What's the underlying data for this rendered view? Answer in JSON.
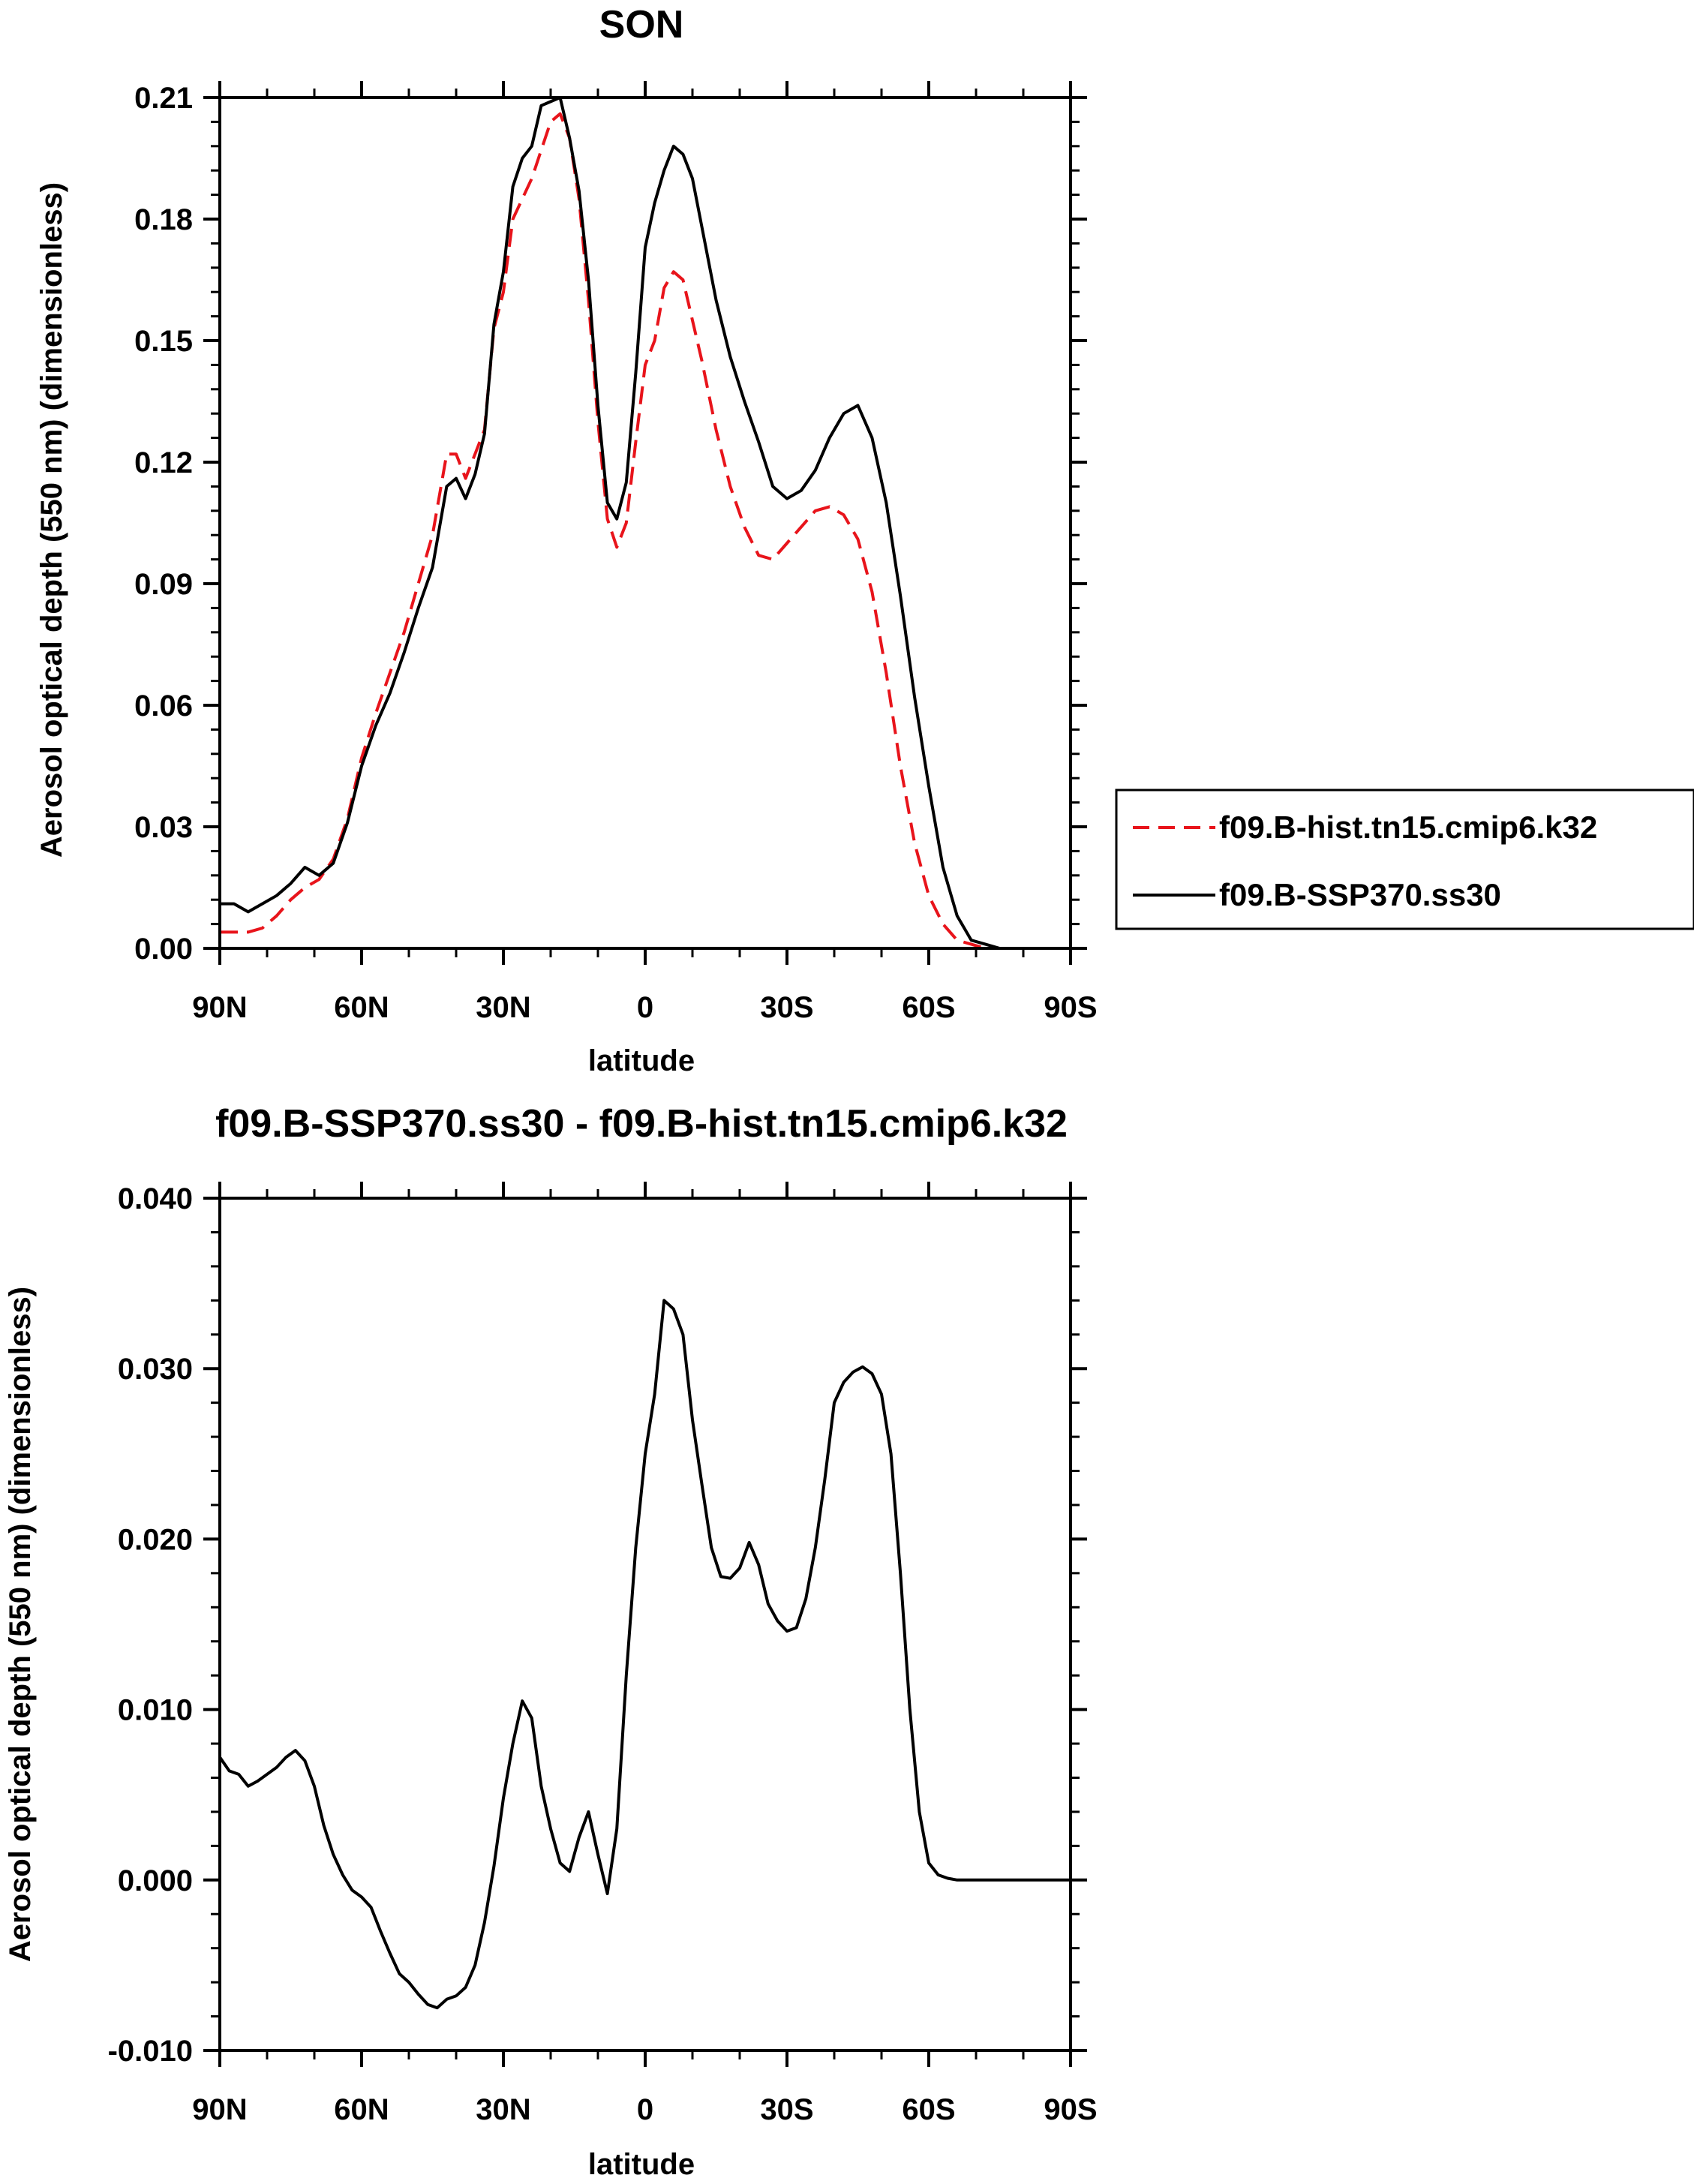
{
  "chart_data": [
    {
      "type": "line",
      "title": "SON",
      "xlabel": "latitude",
      "ylabel": "Aerosol optical depth (550 nm) (dimensionless)",
      "xlim": [
        90,
        -90
      ],
      "ylim": [
        0,
        0.21
      ],
      "x_ticks": [
        90,
        60,
        30,
        0,
        -30,
        -60,
        -90
      ],
      "x_tick_labels": [
        "90N",
        "60N",
        "30N",
        "0",
        "30S",
        "60S",
        "90S"
      ],
      "y_ticks": [
        0,
        0.03,
        0.06,
        0.09,
        0.12,
        0.15,
        0.18,
        0.21
      ],
      "y_tick_labels": [
        "0.00",
        "0.03",
        "0.06",
        "0.09",
        "0.12",
        "0.15",
        "0.18",
        "0.21"
      ],
      "grid": false,
      "legend": "right",
      "series": [
        {
          "name": "f09.B-hist.tn15.cmip6.k32",
          "color": "#e8141b",
          "dash": "dashed",
          "x": [
            90,
            87,
            84,
            81,
            78,
            75,
            72,
            69,
            66,
            63,
            60,
            57,
            54,
            51,
            48,
            45,
            42,
            40,
            38,
            36,
            34,
            32,
            30,
            28,
            26,
            24,
            22,
            20,
            18,
            16,
            14,
            12,
            10,
            8,
            6,
            4,
            2,
            0,
            -2,
            -4,
            -6,
            -8,
            -10,
            -12,
            -15,
            -18,
            -21,
            -24,
            -27,
            -30,
            -33,
            -36,
            -39,
            -42,
            -45,
            -48,
            -51,
            -54,
            -57,
            -60,
            -63,
            -66,
            -69,
            -72,
            -75,
            -80,
            -85,
            -90
          ],
          "y": [
            0.004,
            0.004,
            0.004,
            0.005,
            0.008,
            0.012,
            0.015,
            0.017,
            0.022,
            0.032,
            0.047,
            0.058,
            0.068,
            0.078,
            0.09,
            0.102,
            0.122,
            0.122,
            0.116,
            0.122,
            0.128,
            0.153,
            0.162,
            0.18,
            0.185,
            0.19,
            0.197,
            0.204,
            0.206,
            0.2,
            0.185,
            0.16,
            0.13,
            0.106,
            0.099,
            0.105,
            0.125,
            0.144,
            0.15,
            0.163,
            0.167,
            0.165,
            0.155,
            0.145,
            0.128,
            0.114,
            0.104,
            0.097,
            0.096,
            0.1,
            0.104,
            0.108,
            0.109,
            0.107,
            0.101,
            0.088,
            0.068,
            0.045,
            0.026,
            0.013,
            0.006,
            0.002,
            0.001,
            0.0,
            0.0,
            0.0,
            0.0,
            0.0
          ]
        },
        {
          "name": "f09.B-SSP370.ss30",
          "color": "#000000",
          "dash": "solid",
          "x": [
            90,
            87,
            84,
            81,
            78,
            75,
            72,
            69,
            66,
            63,
            60,
            57,
            54,
            51,
            48,
            45,
            42,
            40,
            38,
            36,
            34,
            32,
            30,
            28,
            26,
            24,
            22,
            20,
            18,
            16,
            14,
            12,
            10,
            8,
            6,
            4,
            2,
            0,
            -2,
            -4,
            -6,
            -8,
            -10,
            -12,
            -15,
            -18,
            -21,
            -24,
            -27,
            -30,
            -33,
            -36,
            -39,
            -42,
            -45,
            -48,
            -51,
            -54,
            -57,
            -60,
            -63,
            -66,
            -69,
            -72,
            -75,
            -80,
            -85,
            -90
          ],
          "y": [
            0.011,
            0.011,
            0.009,
            0.011,
            0.013,
            0.016,
            0.02,
            0.018,
            0.021,
            0.031,
            0.045,
            0.055,
            0.063,
            0.073,
            0.084,
            0.094,
            0.114,
            0.116,
            0.111,
            0.117,
            0.127,
            0.154,
            0.167,
            0.188,
            0.195,
            0.198,
            0.208,
            0.209,
            0.21,
            0.2,
            0.187,
            0.165,
            0.134,
            0.11,
            0.106,
            0.115,
            0.142,
            0.173,
            0.184,
            0.192,
            0.198,
            0.196,
            0.19,
            0.178,
            0.16,
            0.146,
            0.135,
            0.125,
            0.114,
            0.111,
            0.113,
            0.118,
            0.126,
            0.132,
            0.134,
            0.126,
            0.11,
            0.087,
            0.062,
            0.04,
            0.02,
            0.008,
            0.002,
            0.001,
            0.0,
            0.0,
            0.0,
            0.0
          ]
        }
      ]
    },
    {
      "type": "line",
      "title": "f09.B-SSP370.ss30 - f09.B-hist.tn15.cmip6.k32",
      "xlabel": "latitude",
      "ylabel": "Aerosol optical depth (550 nm) (dimensionless)",
      "xlim": [
        90,
        -90
      ],
      "ylim": [
        -0.01,
        0.04
      ],
      "x_ticks": [
        90,
        60,
        30,
        0,
        -30,
        -60,
        -90
      ],
      "x_tick_labels": [
        "90N",
        "60N",
        "30N",
        "0",
        "30S",
        "60S",
        "90S"
      ],
      "y_ticks": [
        -0.01,
        0.0,
        0.01,
        0.02,
        0.03,
        0.04
      ],
      "y_tick_labels": [
        "-0.010",
        "0.000",
        "0.010",
        "0.020",
        "0.030",
        "0.040"
      ],
      "grid": false,
      "series": [
        {
          "color": "#000000",
          "dash": "solid",
          "x": [
            90,
            88,
            86,
            84,
            82,
            80,
            78,
            76,
            74,
            72,
            70,
            68,
            66,
            64,
            62,
            60,
            58,
            56,
            54,
            52,
            50,
            48,
            46,
            44,
            42,
            40,
            38,
            36,
            34,
            32,
            30,
            28,
            26,
            24,
            22,
            20,
            18,
            16,
            14,
            12,
            10,
            8,
            6,
            4,
            2,
            0,
            -2,
            -4,
            -6,
            -8,
            -10,
            -12,
            -14,
            -16,
            -18,
            -20,
            -22,
            -24,
            -26,
            -28,
            -30,
            -32,
            -34,
            -36,
            -38,
            -40,
            -42,
            -44,
            -46,
            -48,
            -50,
            -52,
            -54,
            -56,
            -58,
            -60,
            -62,
            -64,
            -66,
            -68,
            -70,
            -72,
            -75,
            -80,
            -85,
            -90
          ],
          "y": [
            0.0072,
            0.0064,
            0.0062,
            0.0055,
            0.0058,
            0.0062,
            0.0066,
            0.0072,
            0.0076,
            0.007,
            0.0055,
            0.0032,
            0.0015,
            0.0003,
            -0.0006,
            -0.001,
            -0.0016,
            -0.003,
            -0.0043,
            -0.0055,
            -0.006,
            -0.0067,
            -0.0073,
            -0.0075,
            -0.007,
            -0.0068,
            -0.0063,
            -0.005,
            -0.0025,
            0.0008,
            0.0048,
            0.008,
            0.0105,
            0.0095,
            0.0055,
            0.003,
            0.001,
            0.0005,
            0.0025,
            0.004,
            0.0015,
            -0.0008,
            0.003,
            0.012,
            0.0195,
            0.025,
            0.0285,
            0.034,
            0.0335,
            0.032,
            0.027,
            0.0232,
            0.0195,
            0.0178,
            0.0177,
            0.0183,
            0.0198,
            0.0185,
            0.0162,
            0.0152,
            0.0146,
            0.0148,
            0.0165,
            0.0195,
            0.0235,
            0.028,
            0.0292,
            0.0298,
            0.0301,
            0.0297,
            0.0285,
            0.025,
            0.018,
            0.01,
            0.004,
            0.001,
            0.0003,
            0.0001,
            0.0,
            0.0,
            0.0,
            0.0,
            0.0,
            0.0,
            0.0,
            0.0
          ]
        }
      ]
    }
  ]
}
